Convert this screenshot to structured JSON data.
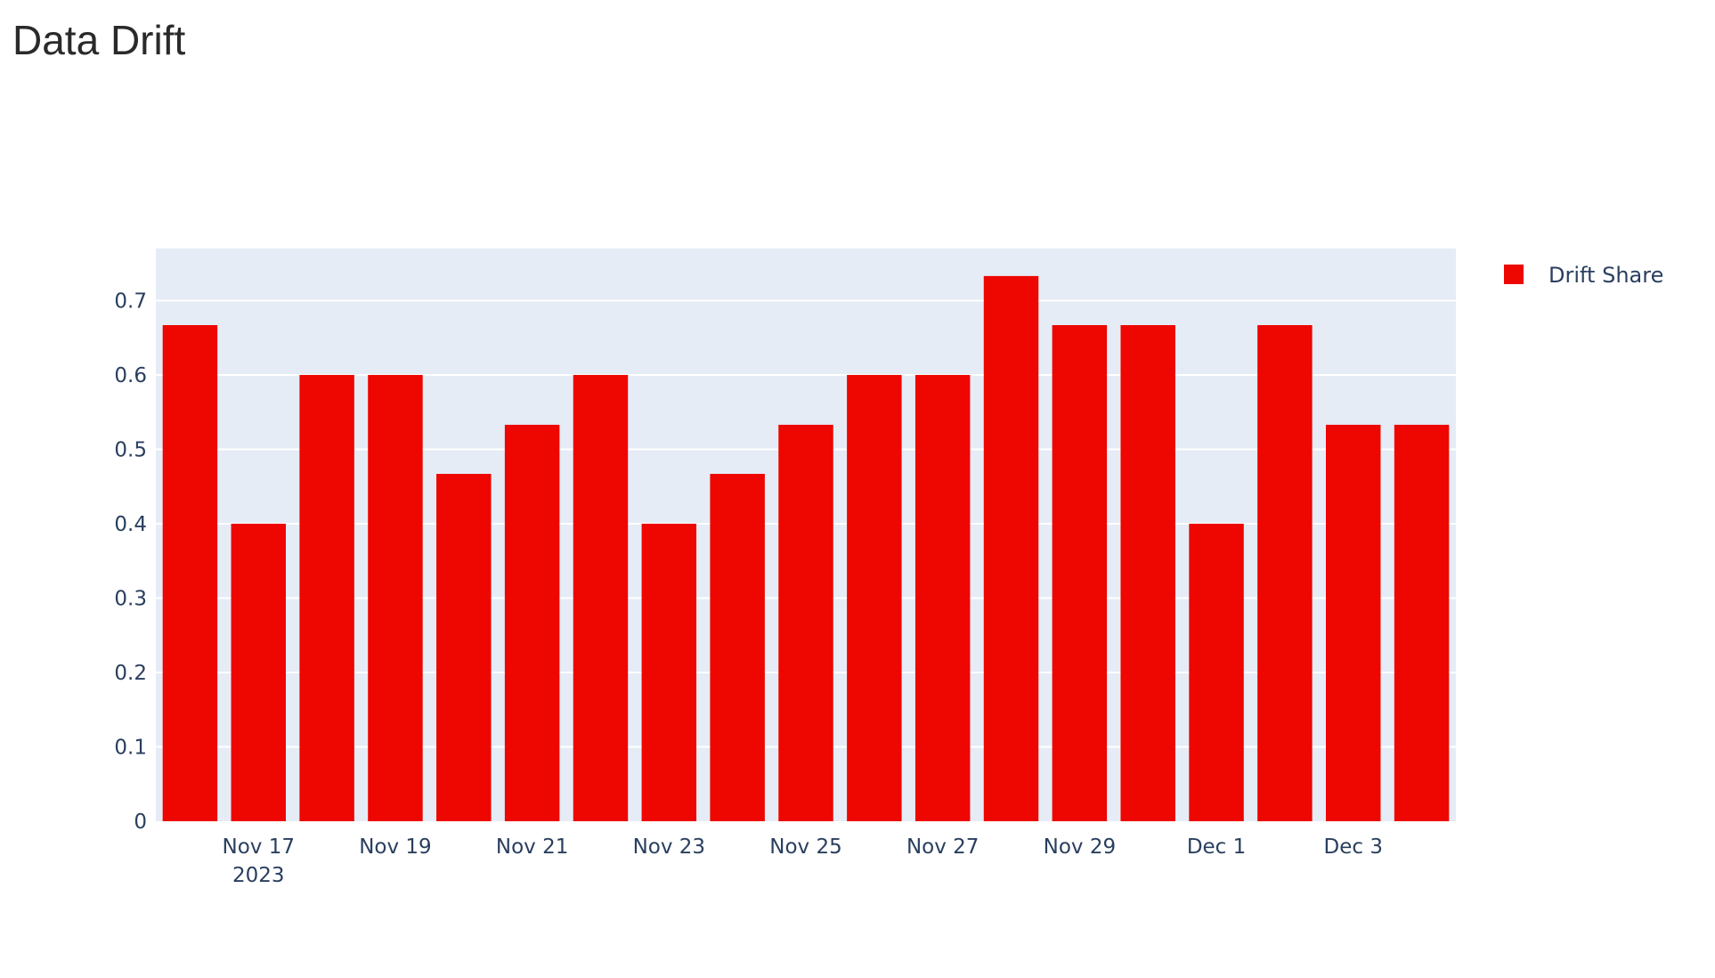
{
  "page": {
    "title": "Data Drift"
  },
  "colors": {
    "bar": "#ee0600",
    "plot_bg": "#e5ecf6",
    "grid": "#ffffff",
    "text": "#2a3f5f"
  },
  "chart_data": {
    "type": "bar",
    "title": "Data Drift",
    "xlabel": "",
    "ylabel": "",
    "x_axis_type": "date",
    "categories": [
      "2023-11-16",
      "2023-11-17",
      "2023-11-18",
      "2023-11-19",
      "2023-11-20",
      "2023-11-21",
      "2023-11-22",
      "2023-11-23",
      "2023-11-24",
      "2023-11-25",
      "2023-11-26",
      "2023-11-27",
      "2023-11-28",
      "2023-11-29",
      "2023-11-30",
      "2023-12-01",
      "2023-12-02",
      "2023-12-03",
      "2023-12-04"
    ],
    "series": [
      {
        "name": "Drift Share",
        "color": "#ee0600",
        "values": [
          0.667,
          0.4,
          0.6,
          0.6,
          0.467,
          0.533,
          0.6,
          0.4,
          0.467,
          0.533,
          0.6,
          0.6,
          0.733,
          0.667,
          0.667,
          0.4,
          0.667,
          0.533,
          0.533
        ]
      }
    ],
    "ylim": [
      0,
      0.77
    ],
    "y_ticks": [
      "0",
      "0.1",
      "0.2",
      "0.3",
      "0.4",
      "0.5",
      "0.6",
      "0.7"
    ],
    "x_tick_labels": [
      {
        "date": "2023-11-17",
        "label": "Nov 17",
        "sublabel": "2023"
      },
      {
        "date": "2023-11-19",
        "label": "Nov 19"
      },
      {
        "date": "2023-11-21",
        "label": "Nov 21"
      },
      {
        "date": "2023-11-23",
        "label": "Nov 23"
      },
      {
        "date": "2023-11-25",
        "label": "Nov 25"
      },
      {
        "date": "2023-11-27",
        "label": "Nov 27"
      },
      {
        "date": "2023-11-29",
        "label": "Nov 29"
      },
      {
        "date": "2023-12-01",
        "label": "Dec 1"
      },
      {
        "date": "2023-12-03",
        "label": "Dec 3"
      }
    ],
    "grid": true,
    "legend": {
      "position": "top-right",
      "entries": [
        "Drift Share"
      ]
    }
  }
}
